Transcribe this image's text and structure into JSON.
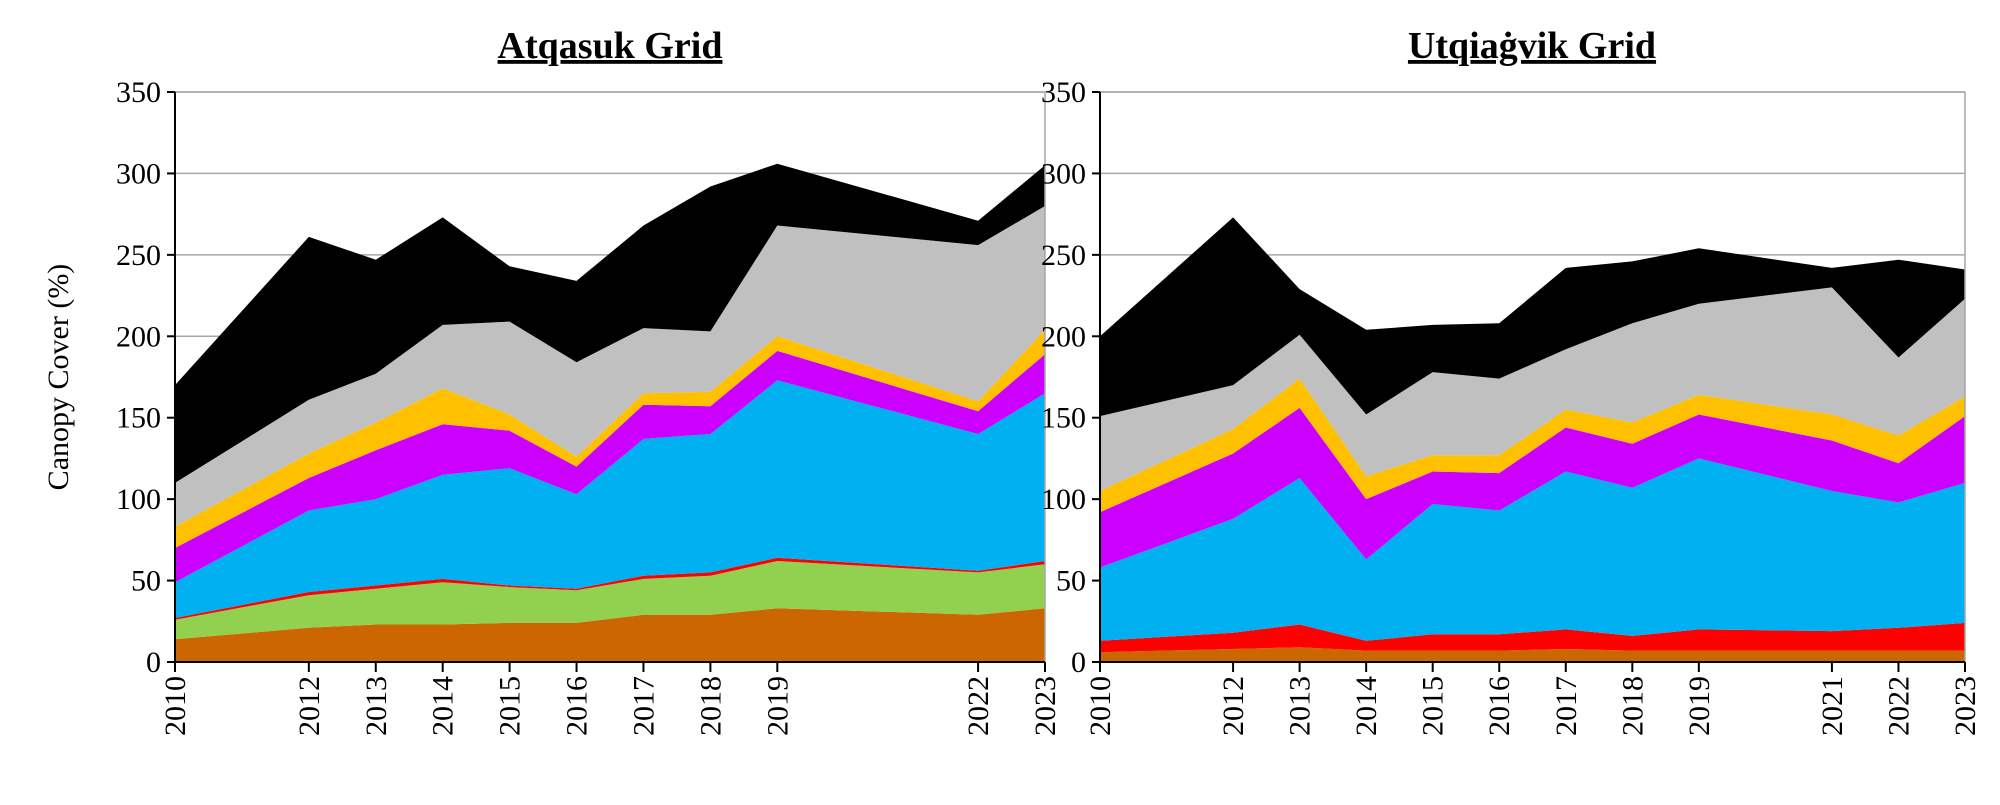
{
  "figure": {
    "ylabel": "Canopy Cover (%)",
    "y_tick_labels": [
      "0",
      "50",
      "100",
      "150",
      "200",
      "250",
      "300",
      "350"
    ]
  },
  "chart_data": [
    {
      "type": "area",
      "stacked": true,
      "title": "Atqasuk Grid",
      "xlabel": "",
      "ylabel": "Canopy Cover (%)",
      "x": [
        2010,
        2012,
        2013,
        2014,
        2015,
        2016,
        2017,
        2018,
        2019,
        2022,
        2023
      ],
      "x_tick_labels": [
        "2010",
        "2012",
        "2013",
        "2014",
        "2015",
        "2016",
        "2017",
        "2018",
        "2019",
        "2022",
        "2023"
      ],
      "xlim": [
        2010,
        2023
      ],
      "ylim": [
        0,
        350
      ],
      "grid": true,
      "series": [
        {
          "name": "orange",
          "color": "#cc6600",
          "values": [
            14,
            21,
            23,
            23,
            24,
            24,
            29,
            29,
            33,
            29,
            33
          ]
        },
        {
          "name": "green",
          "color": "#92d050",
          "values": [
            12,
            20,
            22,
            26,
            22,
            20,
            22,
            24,
            29,
            26,
            27
          ]
        },
        {
          "name": "red",
          "color": "#ff0000",
          "values": [
            1,
            2,
            2,
            2,
            1,
            1,
            2,
            2,
            2,
            1,
            2
          ]
        },
        {
          "name": "blue",
          "color": "#00b0f0",
          "values": [
            22,
            50,
            53,
            64,
            72,
            58,
            84,
            85,
            109,
            84,
            103
          ]
        },
        {
          "name": "magenta",
          "color": "#cc00ff",
          "values": [
            21,
            20,
            30,
            31,
            23,
            17,
            21,
            17,
            18,
            14,
            24
          ]
        },
        {
          "name": "yellow",
          "color": "#ffc000",
          "values": [
            13,
            15,
            17,
            22,
            10,
            6,
            7,
            9,
            9,
            6,
            15
          ]
        },
        {
          "name": "gray",
          "color": "#c0c0c0",
          "values": [
            27,
            33,
            30,
            39,
            57,
            58,
            40,
            37,
            68,
            96,
            76
          ]
        },
        {
          "name": "black",
          "color": "#000000",
          "values": [
            60,
            100,
            70,
            66,
            34,
            50,
            63,
            89,
            38,
            15,
            25
          ]
        }
      ]
    },
    {
      "type": "area",
      "stacked": true,
      "title": "Utqiaġvik Grid",
      "xlabel": "",
      "ylabel": "",
      "x": [
        2010,
        2012,
        2013,
        2014,
        2015,
        2016,
        2017,
        2018,
        2019,
        2021,
        2022,
        2023
      ],
      "x_tick_labels": [
        "2010",
        "2012",
        "2013",
        "2014",
        "2015",
        "2016",
        "2017",
        "2018",
        "2019",
        "2021",
        "2022",
        "2023"
      ],
      "xlim": [
        2010,
        2023
      ],
      "ylim": [
        0,
        350
      ],
      "grid": true,
      "series": [
        {
          "name": "orange",
          "color": "#cc6600",
          "values": [
            6,
            8,
            9,
            7,
            7,
            7,
            8,
            7,
            7,
            7,
            7,
            7
          ]
        },
        {
          "name": "red",
          "color": "#ff0000",
          "values": [
            7,
            10,
            14,
            6,
            10,
            10,
            12,
            9,
            13,
            12,
            14,
            17
          ]
        },
        {
          "name": "blue",
          "color": "#00b0f0",
          "values": [
            45,
            70,
            90,
            50,
            80,
            76,
            97,
            91,
            105,
            86,
            77,
            86
          ]
        },
        {
          "name": "magenta",
          "color": "#cc00ff",
          "values": [
            34,
            40,
            43,
            37,
            20,
            23,
            27,
            27,
            27,
            31,
            24,
            41
          ]
        },
        {
          "name": "yellow",
          "color": "#ffc000",
          "values": [
            13,
            15,
            18,
            14,
            10,
            11,
            11,
            13,
            12,
            16,
            17,
            12
          ]
        },
        {
          "name": "gray",
          "color": "#c0c0c0",
          "values": [
            46,
            27,
            27,
            38,
            51,
            47,
            37,
            61,
            56,
            78,
            48,
            60
          ]
        },
        {
          "name": "black",
          "color": "#000000",
          "values": [
            49,
            103,
            28,
            52,
            29,
            34,
            50,
            38,
            34,
            12,
            60,
            18
          ]
        }
      ]
    }
  ]
}
